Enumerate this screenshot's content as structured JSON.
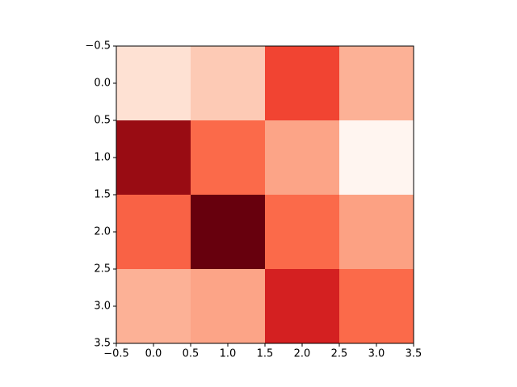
{
  "chart_data": {
    "type": "heatmap",
    "colormap": "Reds",
    "z": [
      [
        0.12,
        0.2,
        0.6,
        0.28
      ],
      [
        0.9,
        0.5,
        0.32,
        0.0
      ],
      [
        0.52,
        1.0,
        0.5,
        0.33
      ],
      [
        0.28,
        0.32,
        0.72,
        0.5
      ]
    ],
    "xlim": [
      -0.5,
      3.5
    ],
    "ylim": [
      3.5,
      -0.5
    ],
    "xticks": [
      {
        "value": -0.5,
        "label": "−0.5"
      },
      {
        "value": 0,
        "label": "0.0"
      },
      0.5,
      {
        "value": 1,
        "label": "1.0"
      },
      1.5,
      {
        "value": 2,
        "label": "2.0"
      },
      2.5,
      {
        "value": 3,
        "label": "3.0"
      },
      3.5
    ],
    "yticks": [
      {
        "value": -0.5,
        "label": "−0.5"
      },
      {
        "value": 0,
        "label": "0.0"
      },
      0.5,
      {
        "value": 1,
        "label": "1.0"
      },
      1.5,
      {
        "value": 2,
        "label": "2.0"
      },
      2.5,
      {
        "value": 3,
        "label": "3.0"
      },
      3.5
    ],
    "grid": false
  }
}
